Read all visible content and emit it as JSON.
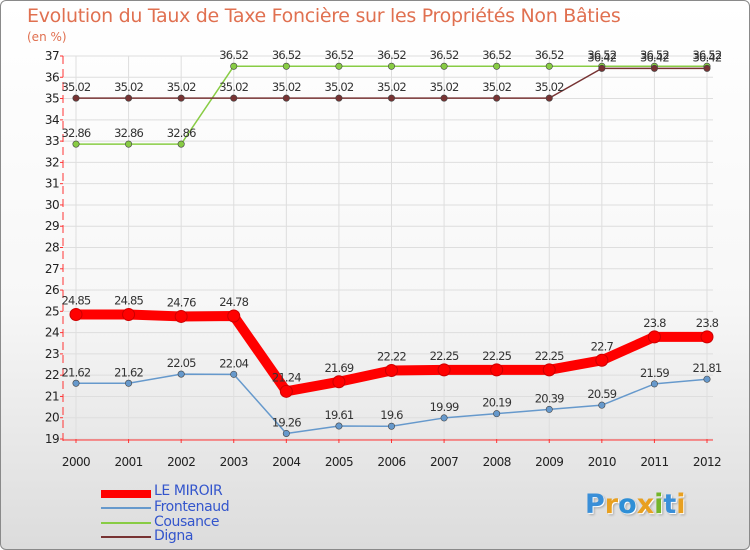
{
  "title": "Evolution du Taux de Taxe Foncière sur les Propriétés Non Bâties",
  "subtitle": "(en %)",
  "logo": "Proxiti",
  "chart_data": {
    "type": "line",
    "title": "Evolution du Taux de Taxe Foncière sur les Propriétés Non Bâties",
    "ylabel": "(en %)",
    "xlabel": "",
    "x": [
      2000,
      2001,
      2002,
      2003,
      2004,
      2005,
      2006,
      2007,
      2008,
      2009,
      2010,
      2011,
      2012
    ],
    "ylim": [
      19,
      37
    ],
    "yticks": [
      19,
      20,
      21,
      22,
      23,
      24,
      25,
      26,
      27,
      28,
      29,
      30,
      31,
      32,
      33,
      34,
      35,
      36,
      37
    ],
    "legend_position": "bottom-left",
    "series": [
      {
        "name": "LE MIROIR",
        "color": "#ff0000",
        "values": [
          24.85,
          24.85,
          24.76,
          24.78,
          21.24,
          21.69,
          22.22,
          22.25,
          22.25,
          22.25,
          22.7,
          23.8,
          23.8
        ],
        "labels": [
          "24.85",
          "24.85",
          "24.76",
          "24.78",
          "21.24",
          "21.69",
          "22.22",
          "22.25",
          "22.25",
          "22.25",
          "22.7",
          "23.8",
          "23.8"
        ]
      },
      {
        "name": "Frontenaud",
        "color": "#6699cc",
        "values": [
          21.62,
          21.62,
          22.05,
          22.04,
          19.26,
          19.61,
          19.6,
          19.99,
          20.19,
          20.39,
          20.59,
          21.59,
          21.81
        ],
        "labels": [
          "21.62",
          "21.62",
          "22.05",
          "22.04",
          "19.26",
          "19.61",
          "19.6",
          "19.99",
          "20.19",
          "20.39",
          "20.59",
          "21.59",
          "21.81"
        ]
      },
      {
        "name": "Cousance",
        "color": "#88cc44",
        "values": [
          32.86,
          32.86,
          32.86,
          36.52,
          36.52,
          36.52,
          36.52,
          36.52,
          36.52,
          36.52,
          36.52,
          36.52,
          36.52
        ],
        "labels": [
          "32.86",
          "32.86",
          "32.86",
          "36.52",
          "36.52",
          "36.52",
          "36.52",
          "36.52",
          "36.52",
          "36.52",
          "36.52",
          "36.52",
          "36.52"
        ]
      },
      {
        "name": "Digna",
        "color": "#773333",
        "values": [
          35.02,
          35.02,
          35.02,
          35.02,
          35.02,
          35.02,
          35.02,
          35.02,
          35.02,
          35.02,
          36.42,
          36.42,
          36.42
        ],
        "labels": [
          "35.02",
          "35.02",
          "35.02",
          "35.02",
          "35.02",
          "35.02",
          "35.02",
          "35.02",
          "35.02",
          "35.02",
          "36.42",
          "36.42",
          "36.42"
        ]
      }
    ]
  }
}
